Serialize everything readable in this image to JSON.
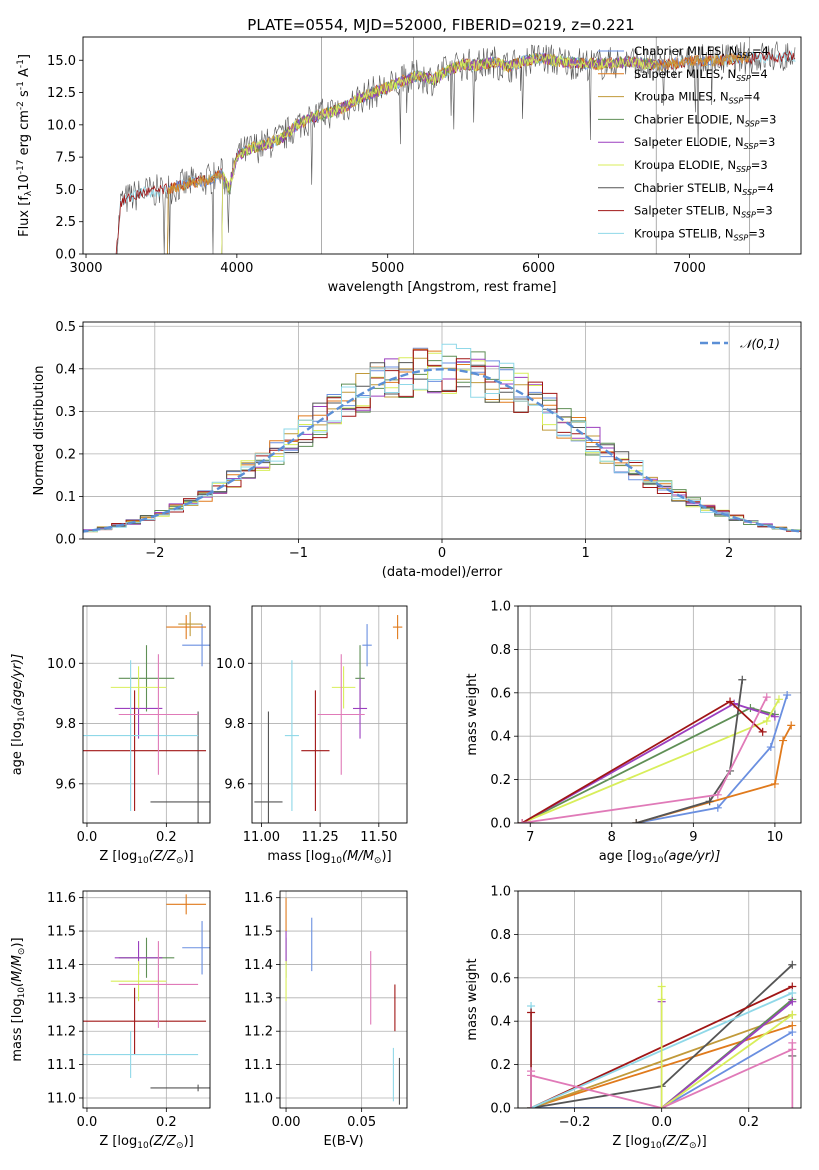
{
  "figure": {
    "title": "PLATE=0554, MJD=52000, FIBERID=0219, z=0.221"
  },
  "colors": {
    "c_MILES": "#6a8fe0",
    "s_MILES": "#e07a1c",
    "k_MILES": "#c19a3a",
    "c_ELODIE": "#5f8f56",
    "s_ELODIE": "#9b3fbf",
    "k_ELODIE": "#d8ee5a",
    "c_STELIB": "#555555",
    "s_STELIB": "#a01616",
    "k_STELIB": "#8fd8e8",
    "normal": "#5b8fd6"
  },
  "chart_data": [
    {
      "id": "spectrum",
      "type": "line",
      "title": "PLATE=0554, MJD=52000, FIBERID=0219, z=0.221",
      "xlabel": "wavelength [Angstrom, rest frame]",
      "ylabel": "Flux [f$_\\lambda$10$^{-17}$ erg cm$^{-2}$ s$^{-1}$ A$^{-1}$]",
      "xlim": [
        2980,
        7740
      ],
      "ylim": [
        0,
        16.8
      ],
      "xticks": [
        "3000",
        "4000",
        "5000",
        "6000",
        "7000"
      ],
      "yticks": [
        "0.0",
        "2.5",
        "5.0",
        "7.5",
        "10.0",
        "12.5",
        "15.0"
      ],
      "legend_position": "top-right",
      "legend": [
        {
          "key": "c_MILES",
          "prefix": "Chabrier MILES, N",
          "suffix": "=4"
        },
        {
          "key": "s_MILES",
          "prefix": "Salpeter MILES, N",
          "suffix": "=4"
        },
        {
          "key": "k_MILES",
          "prefix": "Kroupa MILES, N",
          "suffix": "=4"
        },
        {
          "key": "c_ELODIE",
          "prefix": "Chabrier ELODIE, N",
          "suffix": "=3"
        },
        {
          "key": "s_ELODIE",
          "prefix": "Salpeter ELODIE, N",
          "suffix": "=3"
        },
        {
          "key": "k_ELODIE",
          "prefix": "Kroupa ELODIE, N",
          "suffix": "=3"
        },
        {
          "key": "c_STELIB",
          "prefix": "Chabrier STELIB, N",
          "suffix": "=4"
        },
        {
          "key": "s_STELIB",
          "prefix": "Salpeter STELIB, N",
          "suffix": "=3"
        },
        {
          "key": "k_STELIB",
          "prefix": "Kroupa STELIB, N",
          "suffix": "=3"
        }
      ],
      "legend_sub": "SSP",
      "series_envelope": {
        "x": [
          3200,
          3230,
          3300,
          3400,
          3500,
          3600,
          3700,
          3800,
          3900,
          3950,
          4000,
          4100,
          4200,
          4300,
          4400,
          4500,
          4600,
          4700,
          4800,
          4900,
          5000,
          5100,
          5200,
          5300,
          5400,
          5500,
          5600,
          5700,
          5800,
          5900,
          6000,
          6200,
          6400,
          6600,
          6800,
          7000,
          7200,
          7400,
          7700
        ],
        "y": [
          0,
          4.0,
          4.4,
          4.8,
          4.9,
          5.2,
          5.5,
          5.7,
          6.2,
          5.0,
          7.6,
          8.2,
          8.5,
          9.0,
          10.0,
          10.6,
          10.9,
          11.3,
          12.0,
          12.5,
          12.9,
          13.4,
          13.8,
          13.5,
          14.2,
          14.7,
          14.6,
          14.9,
          14.5,
          14.9,
          15.2,
          14.8,
          14.7,
          14.9,
          14.6,
          14.9,
          15.0,
          15.2,
          15.3
        ]
      },
      "start_wavelengths": {
        "c_MILES": 3540,
        "s_MILES": 3540,
        "k_MILES": 3540,
        "c_ELODIE": 3900,
        "s_ELODIE": 3900,
        "k_ELODIE": 3900,
        "c_STELIB": 3200,
        "s_STELIB": 3200,
        "k_STELIB": 3200
      },
      "end_wavelengths": {
        "c_MILES": 7400,
        "s_MILES": 7400,
        "k_MILES": 7400,
        "c_ELODIE": 6780,
        "s_ELODIE": 6780,
        "k_ELODIE": 6780,
        "c_STELIB": 7700,
        "s_STELIB": 7700,
        "k_STELIB": 7700
      },
      "vertical_lines": [
        4560,
        5170,
        6780,
        7400
      ]
    },
    {
      "id": "residuals",
      "type": "bar",
      "xlabel": "(data-model)/error",
      "ylabel": "Normed distribution",
      "xlim": [
        -2.5,
        2.5
      ],
      "ylim": [
        0,
        0.51
      ],
      "xticks": [
        "−2",
        "−1",
        "0",
        "1",
        "2"
      ],
      "yticks": [
        "0.0",
        "0.1",
        "0.2",
        "0.3",
        "0.4",
        "0.5"
      ],
      "legend": "$\\mathcal{N}(0,1)$",
      "legend_position": "top-right",
      "bin_width": 0.1
    },
    {
      "id": "age_vs_Z",
      "type": "scatter",
      "xlabel": "Z [log$_{10}$(Z/Z$_\\odot$)]",
      "ylabel": "age  [log$_{10}$(age/yr)]",
      "xlim": [
        -0.01,
        0.31
      ],
      "ylim": [
        9.47,
        10.19
      ],
      "xticks": [
        "0.0",
        "0.2"
      ],
      "yticks": [
        "9.6",
        "9.8",
        "10.0"
      ],
      "points": [
        {
          "key": "c_MILES",
          "x": 0.29,
          "xerr": 0.05,
          "y": 10.06,
          "yerr": 0.07
        },
        {
          "key": "s_MILES",
          "x": 0.25,
          "xerr": 0.05,
          "y": 10.12,
          "yerr": 0.04
        },
        {
          "key": "k_MILES",
          "x": 0.26,
          "xerr": 0.03,
          "y": 10.13,
          "yerr": 0.04
        },
        {
          "key": "c_ELODIE",
          "x": 0.15,
          "xerr": 0.07,
          "y": 9.95,
          "yerr": 0.11
        },
        {
          "key": "s_ELODIE",
          "x": 0.13,
          "xerr": 0.06,
          "y": 9.85,
          "yerr": 0.1
        },
        {
          "key": "k_ELODIE",
          "x": 0.13,
          "xerr": 0.07,
          "y": 9.92,
          "yerr": 0.07
        },
        {
          "key": "c_STELIB",
          "x": 0.28,
          "xerr": 0.12,
          "y": 9.54,
          "yerr": 0.3
        },
        {
          "key": "s_STELIB",
          "x": 0.12,
          "xerr": 0.18,
          "y": 9.71,
          "yerr": 0.2
        },
        {
          "key": "k_STELIB",
          "x": 0.11,
          "xerr": 0.17,
          "y": 9.76,
          "yerr": 0.25
        },
        {
          "key": "p_extra",
          "x": 0.18,
          "xerr": 0.1,
          "y": 9.83,
          "yerr": 0.2
        }
      ]
    },
    {
      "id": "age_vs_mass",
      "type": "scatter",
      "xlabel": "mass [log$_{10}$(M/M$_\\odot$)]",
      "ylabel": "",
      "xlim": [
        10.96,
        11.62
      ],
      "ylim": [
        9.47,
        10.19
      ],
      "xticks": [
        "11.00",
        "11.25",
        "11.50"
      ],
      "yticks": [
        "9.6",
        "9.8",
        "10.0"
      ],
      "points": [
        {
          "key": "c_MILES",
          "x": 11.45,
          "xerr": 0.02,
          "y": 10.06,
          "yerr": 0.07
        },
        {
          "key": "s_MILES",
          "x": 11.58,
          "xerr": 0.02,
          "y": 10.12,
          "yerr": 0.04
        },
        {
          "key": "c_ELODIE",
          "x": 11.42,
          "xerr": 0.02,
          "y": 9.95,
          "yerr": 0.11
        },
        {
          "key": "s_ELODIE",
          "x": 11.42,
          "xerr": 0.03,
          "y": 9.85,
          "yerr": 0.1
        },
        {
          "key": "k_ELODIE",
          "x": 11.35,
          "xerr": 0.05,
          "y": 9.92,
          "yerr": 0.07
        },
        {
          "key": "c_STELIB",
          "x": 11.03,
          "xerr": 0.06,
          "y": 9.54,
          "yerr": 0.3
        },
        {
          "key": "s_STELIB",
          "x": 11.23,
          "xerr": 0.06,
          "y": 9.71,
          "yerr": 0.2
        },
        {
          "key": "k_STELIB",
          "x": 11.13,
          "xerr": 0.03,
          "y": 9.76,
          "yerr": 0.25
        },
        {
          "key": "p_extra",
          "x": 11.34,
          "xerr": 0.1,
          "y": 9.83,
          "yerr": 0.2
        }
      ]
    },
    {
      "id": "weight_vs_age",
      "type": "line",
      "xlabel": "age  [log$_{10}$(age/yr)]",
      "ylabel": "mass weight",
      "xlim": [
        6.85,
        10.32
      ],
      "ylim": [
        0,
        1.0
      ],
      "xticks": [
        "7",
        "8",
        "9",
        "10"
      ],
      "yticks": [
        "0.0",
        "0.2",
        "0.4",
        "0.6",
        "0.8",
        "1.0"
      ],
      "series": [
        {
          "key": "c_MILES",
          "x": [
            8.3,
            9.3,
            9.95,
            10.15
          ],
          "y": [
            0.0,
            0.07,
            0.35,
            0.59
          ]
        },
        {
          "key": "s_MILES",
          "x": [
            8.3,
            10.0,
            10.1,
            10.2
          ],
          "y": [
            0.0,
            0.18,
            0.38,
            0.45
          ]
        },
        {
          "key": "c_ELODIE",
          "x": [
            6.9,
            9.7,
            10.0
          ],
          "y": [
            0.0,
            0.53,
            0.5
          ]
        },
        {
          "key": "s_ELODIE",
          "x": [
            6.9,
            9.5,
            10.0
          ],
          "y": [
            0.0,
            0.55,
            0.49
          ]
        },
        {
          "key": "k_ELODIE",
          "x": [
            6.9,
            9.9,
            10.05
          ],
          "y": [
            0.0,
            0.47,
            0.57
          ]
        },
        {
          "key": "c_STELIB",
          "x": [
            8.3,
            9.2,
            9.45,
            9.6
          ],
          "y": [
            0.0,
            0.1,
            0.24,
            0.66
          ]
        },
        {
          "key": "s_STELIB",
          "x": [
            6.9,
            9.45,
            9.85
          ],
          "y": [
            0.0,
            0.56,
            0.42
          ]
        },
        {
          "key": "p_extra",
          "x": [
            6.9,
            9.3,
            9.9
          ],
          "y": [
            0.0,
            0.13,
            0.58
          ]
        }
      ]
    },
    {
      "id": "mass_vs_Z",
      "type": "scatter",
      "xlabel": "Z [log$_{10}$(Z/Z$_\\odot$)]",
      "ylabel": "mass [log$_{10}$(M/M$_\\odot$)]",
      "xlim": [
        -0.01,
        0.31
      ],
      "ylim": [
        10.97,
        11.62
      ],
      "xticks": [
        "0.0",
        "0.2"
      ],
      "yticks": [
        "11.0",
        "11.1",
        "11.2",
        "11.3",
        "11.4",
        "11.5",
        "11.6"
      ],
      "points": [
        {
          "key": "c_MILES",
          "x": 0.29,
          "xerr": 0.05,
          "y": 11.45,
          "yerr": 0.08
        },
        {
          "key": "s_MILES",
          "x": 0.25,
          "xerr": 0.05,
          "y": 11.58,
          "yerr": 0.03
        },
        {
          "key": "c_ELODIE",
          "x": 0.15,
          "xerr": 0.07,
          "y": 11.42,
          "yerr": 0.06
        },
        {
          "key": "s_ELODIE",
          "x": 0.13,
          "xerr": 0.06,
          "y": 11.42,
          "yerr": 0.05
        },
        {
          "key": "k_ELODIE",
          "x": 0.13,
          "xerr": 0.07,
          "y": 11.35,
          "yerr": 0.06
        },
        {
          "key": "c_STELIB",
          "x": 0.28,
          "xerr": 0.12,
          "y": 11.03,
          "yerr": 0.01
        },
        {
          "key": "s_STELIB",
          "x": 0.12,
          "xerr": 0.18,
          "y": 11.23,
          "yerr": 0.1
        },
        {
          "key": "k_STELIB",
          "x": 0.11,
          "xerr": 0.17,
          "y": 11.13,
          "yerr": 0.07
        },
        {
          "key": "p_extra",
          "x": 0.18,
          "xerr": 0.1,
          "y": 11.34,
          "yerr": 0.13
        }
      ]
    },
    {
      "id": "mass_vs_EBV",
      "type": "scatter",
      "xlabel": "E(B-V)",
      "ylabel": "",
      "xlim": [
        -0.004,
        0.08
      ],
      "ylim": [
        10.97,
        11.62
      ],
      "xticks": [
        "0.00",
        "0.05"
      ],
      "yticks": [
        "11.0",
        "11.1",
        "11.2",
        "11.3",
        "11.4",
        "11.5",
        "11.6"
      ],
      "points": [
        {
          "key": "c_MILES",
          "x": 0.017,
          "y": 11.46,
          "yerr": 0.08
        },
        {
          "key": "s_MILES",
          "x": 0.0,
          "y": 11.55,
          "yerr": 0.05
        },
        {
          "key": "c_ELODIE",
          "x": 0.0,
          "y": 11.42,
          "yerr": 0.06
        },
        {
          "key": "s_ELODIE",
          "x": 0.0,
          "y": 11.45,
          "yerr": 0.05
        },
        {
          "key": "k_ELODIE",
          "x": 0.0,
          "y": 11.35,
          "yerr": 0.06
        },
        {
          "key": "c_STELIB",
          "x": 0.075,
          "y": 11.05,
          "yerr": 0.07
        },
        {
          "key": "s_STELIB",
          "x": 0.072,
          "y": 11.27,
          "yerr": 0.07
        },
        {
          "key": "k_STELIB",
          "x": 0.071,
          "y": 11.07,
          "yerr": 0.08
        },
        {
          "key": "p_extra",
          "x": 0.056,
          "y": 11.33,
          "yerr": 0.11
        }
      ]
    },
    {
      "id": "weight_vs_Z",
      "type": "line",
      "xlabel": "Z [log$_{10}$(Z/Z$_\\odot$)]",
      "ylabel": "mass weight",
      "xlim": [
        -0.33,
        0.32
      ],
      "ylim": [
        0,
        1.0
      ],
      "xticks": [
        "−0.2",
        "0.0",
        "0.2"
      ],
      "yticks": [
        "0.0",
        "0.2",
        "0.4",
        "0.6",
        "0.8",
        "1.0"
      ],
      "series": [
        {
          "key": "c_MILES",
          "x": [
            -0.3,
            0.0,
            0.3
          ],
          "y": [
            0.0,
            0.0,
            0.35
          ]
        },
        {
          "key": "s_MILES",
          "x": [
            -0.3,
            0.3
          ],
          "y": [
            0.0,
            0.38
          ]
        },
        {
          "key": "k_MILES",
          "x": [
            -0.3,
            0.3
          ],
          "y": [
            0.0,
            0.43
          ]
        },
        {
          "key": "c_ELODIE",
          "x": [
            0.0,
            0.3
          ],
          "y": [
            0.0,
            0.5
          ]
        },
        {
          "key": "s_ELODIE",
          "x": [
            0.0,
            0.3
          ],
          "y": [
            0.0,
            0.49
          ]
        },
        {
          "key": "k_ELODIE",
          "x": [
            0.0,
            0.3
          ],
          "y": [
            0.0,
            0.43
          ]
        },
        {
          "key": "c_STELIB",
          "x": [
            -0.3,
            0.0,
            0.3
          ],
          "y": [
            0.0,
            0.1,
            0.66
          ]
        },
        {
          "key": "s_STELIB",
          "x": [
            -0.3,
            0.3
          ],
          "y": [
            0.0,
            0.56
          ]
        },
        {
          "key": "k_STELIB",
          "x": [
            -0.3,
            0.3
          ],
          "y": [
            0.0,
            0.53
          ]
        },
        {
          "key": "p_extra",
          "x": [
            -0.3,
            0.0,
            0.3
          ],
          "y": [
            0.15,
            0.0,
            0.27
          ]
        }
      ],
      "markers": [
        {
          "key": "k_STELIB",
          "x": -0.3,
          "y": 0.47
        },
        {
          "key": "s_STELIB",
          "x": -0.3,
          "y": 0.44
        },
        {
          "key": "p_extra",
          "x": -0.3,
          "y": 0.17
        },
        {
          "key": "k_ELODIE",
          "x": 0.0,
          "y": 0.56
        },
        {
          "key": "s_ELODIE",
          "x": 0.0,
          "y": 0.49
        },
        {
          "key": "k_ELODIE",
          "x": 0.0,
          "y": 0.5
        },
        {
          "key": "c_STELIB",
          "x": 0.3,
          "y": 0.24
        },
        {
          "key": "p_extra",
          "x": 0.3,
          "y": 0.3
        }
      ]
    }
  ]
}
